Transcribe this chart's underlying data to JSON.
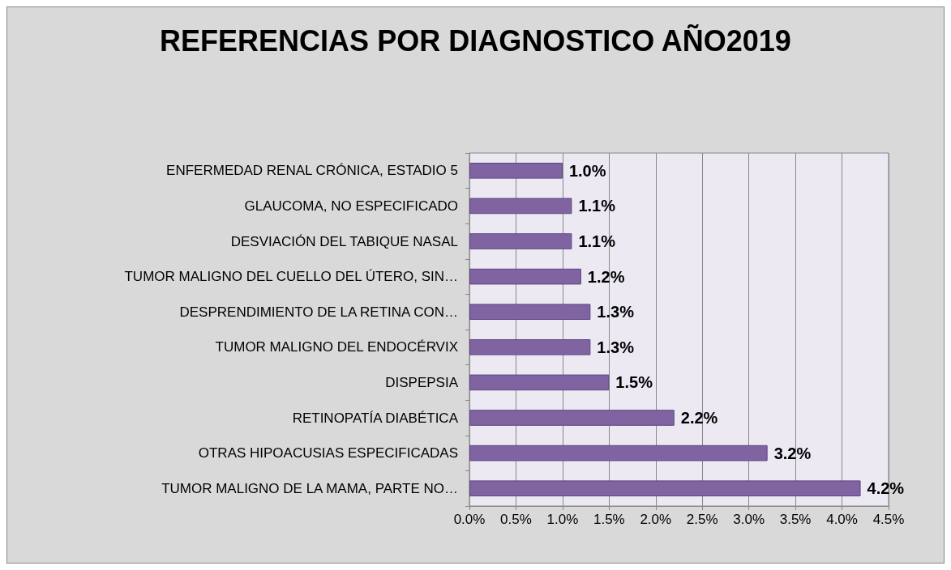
{
  "chart_data": {
    "type": "bar",
    "orientation": "horizontal",
    "title": "REFERENCIAS POR DIAGNOSTICO AÑO2019",
    "categories": [
      "ENFERMEDAD RENAL CRÓNICA, ESTADIO 5",
      "GLAUCOMA, NO ESPECIFICADO",
      "DESVIACIÓN DEL TABIQUE NASAL",
      "TUMOR MALIGNO DEL CUELLO DEL ÚTERO, SIN…",
      "DESPRENDIMIENTO DE LA RETINA CON…",
      "TUMOR MALIGNO DEL ENDOCÉRVIX",
      "DISPEPSIA",
      "RETINOPATÍA DIABÉTICA",
      "OTRAS HIPOACUSIAS ESPECIFICADAS",
      "TUMOR MALIGNO DE LA MAMA, PARTE NO…"
    ],
    "values": [
      1.0,
      1.1,
      1.1,
      1.2,
      1.3,
      1.3,
      1.5,
      2.2,
      3.2,
      4.2
    ],
    "value_labels": [
      "1.0%",
      "1.1%",
      "1.1%",
      "1.2%",
      "1.3%",
      "1.3%",
      "1.5%",
      "2.2%",
      "3.2%",
      "4.2%"
    ],
    "color": "#8064a2",
    "xlim": [
      0,
      4.5
    ],
    "xticks": [
      {
        "value": 0,
        "label": "0.0%"
      },
      {
        "value": 0.5,
        "label": "0.5%"
      },
      {
        "value": 1,
        "label": "1.0%"
      },
      {
        "value": 1.5,
        "label": "1.5%"
      },
      {
        "value": 2,
        "label": "2.0%"
      },
      {
        "value": 2.5,
        "label": "2.5%"
      },
      {
        "value": 3,
        "label": "3.0%"
      },
      {
        "value": 3.5,
        "label": "3.5%"
      },
      {
        "value": 4,
        "label": "4.0%"
      },
      {
        "value": 4.5,
        "label": "4.5%"
      }
    ],
    "grid": "x"
  }
}
